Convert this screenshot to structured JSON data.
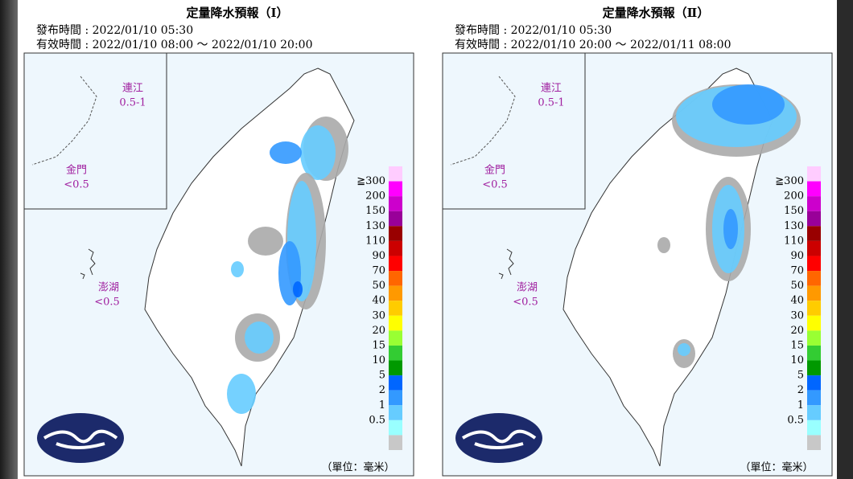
{
  "panels": [
    {
      "title": "定量降水預報（Ⅰ）",
      "issue_time": "發布時間 : 2022/01/10 05:30",
      "valid_time": "有效時間 : 2022/01/10 08:00 ～ 2022/01/10 20:00",
      "inset": [
        {
          "name": "連江",
          "amount": "0.5-1"
        },
        {
          "name": "金門",
          "amount": "<0.5"
        }
      ],
      "penghu": {
        "name": "澎湖",
        "amount": "<0.5"
      },
      "unit": "（單位：毫米）"
    },
    {
      "title": "定量降水預報（Ⅱ）",
      "issue_time": "發布時間 : 2022/01/10 05:30",
      "valid_time": "有效時間 : 2022/01/10 20:00 ～ 2022/01/11 08:00",
      "inset": [
        {
          "name": "連江",
          "amount": "0.5-1"
        },
        {
          "name": "金門",
          "amount": "<0.5"
        }
      ],
      "penghu": {
        "name": "澎湖",
        "amount": "<0.5"
      },
      "unit": "（單位：毫米）"
    }
  ],
  "legend": {
    "labels": [
      "≧300",
      "200",
      "150",
      "130",
      "110",
      "90",
      "70",
      "50",
      "40",
      "30",
      "20",
      "15",
      "10",
      "5",
      "2",
      "1",
      "0.5"
    ],
    "colors": [
      "#ffccff",
      "#ff00ff",
      "#cc00cc",
      "#990099",
      "#990000",
      "#cc0000",
      "#ff0000",
      "#ff6600",
      "#ff9900",
      "#ffcc00",
      "#ffff00",
      "#99ff33",
      "#33cc33",
      "#009900",
      "#0066ff",
      "#3399ff",
      "#66ccff",
      "#99ffff",
      "#c8c8c8"
    ]
  }
}
